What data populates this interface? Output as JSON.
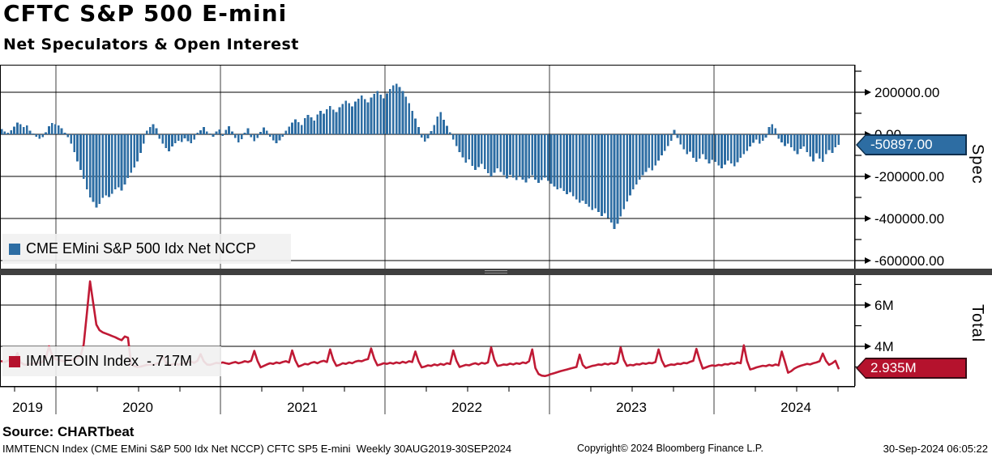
{
  "header": {
    "title": "CFTC S&P 500 E-mini",
    "subtitle": "Net Speculators & Open Interest"
  },
  "panels": {
    "spec": {
      "axis_title": "Spec",
      "legend_label": "CME EMini S&P 500 Idx Net NCCP",
      "tag_value": "-50897.00"
    },
    "total": {
      "axis_title": "Total",
      "legend_label": "IMMTEOIN Index  -.717M",
      "tag_value": "2.935M"
    }
  },
  "footer": {
    "source": "Source: CHARTbeat",
    "description": "IMMTENCN Index (CME EMini S&P 500 Idx Net NCCP) CFTC SP5 E-mini  Weekly 30AUG2019-30SEP2024",
    "copyright": "Copyright© 2024 Bloomberg Finance L.P.",
    "timestamp": "30-Sep-2024 06:05:22"
  },
  "colors": {
    "bar_blue": "#2d6da3",
    "line_red": "#c01a35",
    "tag_blue": "#2d6da3",
    "tag_red": "#b5122d",
    "separator": "#3f3f3f",
    "grid_vertical": "#3d3d3d",
    "grid_horizontal": "#000000"
  },
  "chart_data": [
    {
      "type": "bar",
      "name": "CME EMini S&P 500 Idx Net NCCP",
      "frequency": "weekly",
      "x_range": "30AUG2019-30SEP2024",
      "values_unit": "thousands of contracts",
      "last_value": -50.897,
      "ylim_unit": [
        -650,
        330
      ],
      "yticks": [
        {
          "label": "200000.00",
          "value": 200
        },
        {
          "label": "0.00",
          "value": 0
        },
        {
          "label": "-200000.00",
          "value": -200
        },
        {
          "label": "-400000.00",
          "value": -400
        },
        {
          "label": "-600000.00",
          "value": -600
        }
      ],
      "minor_tick_values": [
        300,
        100,
        -100,
        -300,
        -500
      ],
      "values": [
        25,
        14,
        8,
        20,
        36,
        55,
        48,
        34,
        42,
        18,
        4,
        -12,
        -22,
        -14,
        10,
        38,
        54,
        48,
        42,
        28,
        8,
        -14,
        -45,
        -85,
        -128,
        -170,
        -212,
        -262,
        -300,
        -322,
        -348,
        -330,
        -302,
        -290,
        -298,
        -282,
        -262,
        -252,
        -268,
        -238,
        -208,
        -182,
        -158,
        -128,
        -88,
        -45,
        18,
        34,
        48,
        28,
        -22,
        -45,
        -65,
        -80,
        -58,
        -42,
        -30,
        -36,
        -20,
        -32,
        -42,
        -25,
        8,
        20,
        34,
        14,
        4,
        -12,
        14,
        24,
        -8,
        22,
        38,
        14,
        -18,
        -38,
        -24,
        8,
        28,
        -14,
        -32,
        -18,
        12,
        32,
        18,
        -12,
        -28,
        -42,
        -28,
        -12,
        18,
        36,
        55,
        72,
        58,
        44,
        76,
        92,
        80,
        65,
        95,
        112,
        98,
        120,
        135,
        118,
        105,
        128,
        145,
        160,
        148,
        132,
        155,
        170,
        185,
        168,
        152,
        175,
        192,
        205,
        188,
        172,
        195,
        215,
        232,
        240,
        225,
        205,
        178,
        148,
        112,
        75,
        35,
        -15,
        -35,
        -20,
        15,
        45,
        85,
        105,
        70,
        40,
        10,
        -25,
        -55,
        -85,
        -110,
        -135,
        -120,
        -150,
        -170,
        -155,
        -140,
        -165,
        -185,
        -200,
        -182,
        -162,
        -178,
        -195,
        -210,
        -192,
        -205,
        -218,
        -200,
        -215,
        -228,
        -210,
        -195,
        -215,
        -230,
        -218,
        -205,
        -222,
        -235,
        -248,
        -262,
        -255,
        -270,
        -285,
        -275,
        -295,
        -310,
        -325,
        -315,
        -330,
        -345,
        -360,
        -352,
        -370,
        -388,
        -375,
        -398,
        -420,
        -450,
        -425,
        -390,
        -355,
        -320,
        -290,
        -262,
        -238,
        -215,
        -195,
        -178,
        -160,
        -172,
        -148,
        -125,
        -100,
        -78,
        -55,
        -30,
        22,
        -18,
        -48,
        -72,
        -95,
        -82,
        -112,
        -130,
        -115,
        -95,
        -120,
        -138,
        -122,
        -130,
        -148,
        -162,
        -145,
        -125,
        -138,
        -152,
        -132,
        -112,
        -95,
        -78,
        -58,
        -40,
        -25,
        -45,
        -30,
        -15,
        35,
        48,
        28,
        -22,
        -38,
        -55,
        -45,
        -62,
        -78,
        -95,
        -70,
        -58,
        -85,
        -105,
        -128,
        -90,
        -115,
        -131,
        -95,
        -75,
        -88,
        -62,
        -50.897
      ]
    },
    {
      "type": "line",
      "name": "IMMTEOIN Index",
      "frequency": "weekly",
      "x_range": "30AUG2019-30SEP2024",
      "values_unit": "millions of contracts",
      "last_value": 2.935,
      "ylim_unit": [
        2.2,
        7.3
      ],
      "yticks": [
        {
          "label": "6M",
          "value": 6
        },
        {
          "label": "4M",
          "value": 4
        }
      ],
      "minor_tick_values": [
        7,
        5,
        3
      ],
      "values": [
        3.28,
        3.24,
        3.3,
        3.42,
        3.3,
        3.68,
        3.22,
        3.12,
        3.1,
        3.14,
        3.18,
        3.22,
        3.18,
        3.26,
        3.45,
        4.0,
        3.55,
        3.38,
        3.35,
        3.3,
        3.28,
        3.32,
        3.34,
        3.38,
        3.44,
        3.52,
        4.1,
        5.6,
        7.15,
        6.1,
        5.05,
        4.78,
        4.68,
        4.62,
        4.56,
        4.5,
        4.44,
        4.36,
        4.3,
        4.48,
        4.42,
        3.12,
        3.05,
        3.0,
        3.02,
        3.06,
        3.1,
        3.12,
        3.1,
        3.16,
        3.2,
        3.52,
        3.22,
        3.08,
        3.12,
        3.16,
        3.1,
        3.18,
        3.2,
        3.24,
        3.26,
        3.2,
        3.3,
        3.62,
        3.28,
        3.12,
        3.1,
        3.15,
        3.2,
        3.18,
        3.22,
        3.18,
        3.15,
        3.2,
        3.24,
        3.18,
        3.22,
        3.28,
        3.24,
        3.3,
        3.78,
        3.3,
        2.98,
        3.05,
        3.12,
        3.18,
        3.15,
        3.22,
        3.18,
        3.24,
        3.28,
        3.22,
        3.8,
        3.32,
        3.02,
        3.08,
        3.15,
        3.12,
        3.2,
        3.24,
        3.18,
        3.26,
        3.3,
        3.24,
        3.85,
        3.35,
        3.05,
        3.1,
        3.18,
        3.15,
        3.22,
        3.18,
        3.26,
        3.3,
        3.28,
        3.34,
        3.38,
        3.9,
        3.4,
        3.08,
        3.12,
        3.18,
        3.15,
        3.2,
        3.16,
        3.22,
        3.18,
        3.25,
        3.2,
        3.28,
        3.24,
        3.75,
        3.28,
        2.98,
        3.02,
        3.08,
        3.05,
        3.12,
        3.08,
        3.15,
        3.1,
        3.18,
        3.14,
        3.8,
        3.3,
        3.0,
        3.05,
        3.1,
        3.08,
        3.14,
        3.18,
        3.12,
        3.2,
        3.16,
        3.22,
        3.95,
        3.35,
        3.05,
        3.08,
        3.12,
        3.1,
        3.16,
        3.12,
        3.18,
        3.15,
        3.22,
        3.18,
        3.28,
        3.85,
        2.95,
        2.66,
        2.58,
        2.56,
        2.6,
        2.66,
        2.7,
        2.75,
        2.8,
        2.84,
        2.88,
        2.92,
        2.96,
        3.0,
        3.6,
        3.1,
        2.95,
        3.0,
        3.05,
        3.08,
        3.12,
        3.1,
        3.16,
        3.12,
        3.18,
        3.15,
        3.22,
        3.95,
        3.35,
        3.05,
        3.1,
        3.08,
        3.14,
        3.12,
        3.18,
        3.15,
        3.2,
        3.18,
        3.24,
        3.85,
        3.32,
        3.02,
        3.08,
        3.12,
        3.1,
        3.16,
        3.14,
        3.2,
        3.18,
        3.25,
        3.3,
        3.88,
        3.35,
        2.92,
        2.98,
        3.04,
        3.08,
        3.05,
        3.1,
        3.08,
        3.14,
        3.12,
        3.18,
        3.15,
        3.22,
        3.18,
        4.05,
        3.3,
        2.88,
        2.92,
        2.98,
        3.02,
        3.06,
        3.04,
        3.1,
        3.06,
        3.12,
        3.08,
        3.75,
        3.25,
        2.72,
        2.8,
        2.92,
        3.0,
        3.06,
        3.1,
        3.15,
        3.12,
        3.18,
        3.22,
        3.28,
        3.65,
        3.3,
        3.1,
        3.18,
        3.3,
        2.935
      ]
    }
  ],
  "x_axis": {
    "year_labels": [
      "2019",
      "2020",
      "2021",
      "2022",
      "2023",
      "2024"
    ]
  }
}
